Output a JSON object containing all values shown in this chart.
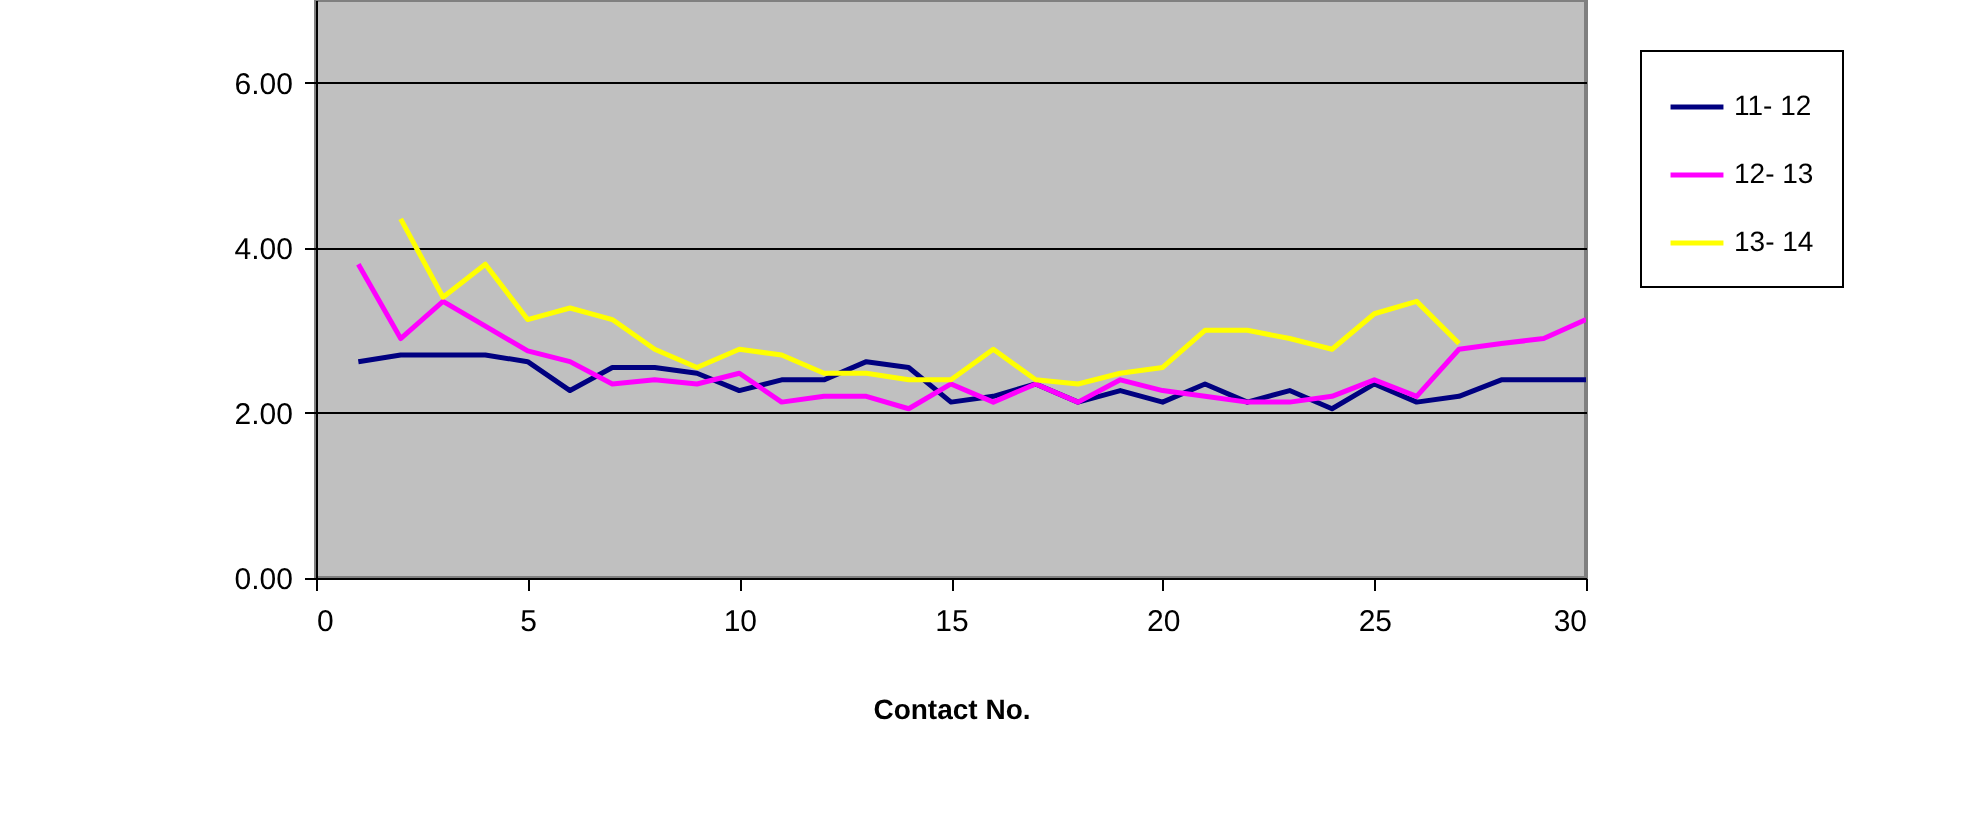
{
  "chart_data": {
    "type": "line",
    "xlabel": "Contact No.",
    "x": [
      1,
      2,
      3,
      4,
      5,
      6,
      7,
      8,
      9,
      10,
      11,
      12,
      13,
      14,
      15,
      16,
      17,
      18,
      19,
      20,
      21,
      22,
      23,
      24,
      25,
      26,
      27,
      28,
      29,
      30
    ],
    "series": [
      {
        "name": "11- 12",
        "color": "#000080",
        "values": [
          2.62,
          2.7,
          2.7,
          2.7,
          2.62,
          2.27,
          2.55,
          2.55,
          2.48,
          2.27,
          2.4,
          2.4,
          2.62,
          2.55,
          2.13,
          2.2,
          2.35,
          2.13,
          2.27,
          2.13,
          2.35,
          2.13,
          2.27,
          2.05,
          2.35,
          2.13,
          2.2,
          2.4,
          2.4,
          2.4
        ]
      },
      {
        "name": "12- 13",
        "color": "#ff00ff",
        "values": [
          3.8,
          2.9,
          3.35,
          3.05,
          2.75,
          2.62,
          2.35,
          2.4,
          2.35,
          2.48,
          2.13,
          2.2,
          2.2,
          2.05,
          2.35,
          2.13,
          2.35,
          2.13,
          2.4,
          2.27,
          2.2,
          2.13,
          2.13,
          2.2,
          2.4,
          2.2,
          2.77,
          2.84,
          2.9,
          3.13
        ]
      },
      {
        "name": "13- 14",
        "color": "#ffff00",
        "values": [
          null,
          4.35,
          3.4,
          3.8,
          3.13,
          3.27,
          3.13,
          2.77,
          2.55,
          2.77,
          2.7,
          2.48,
          2.48,
          2.4,
          2.4,
          2.77,
          2.4,
          2.35,
          2.48,
          2.55,
          3.0,
          3.0,
          2.9,
          2.77,
          3.2,
          3.35,
          2.84,
          null,
          null,
          null
        ]
      }
    ],
    "xlim": [
      0,
      30
    ],
    "xticks": [
      0,
      5,
      10,
      15,
      20,
      25,
      30
    ],
    "ylim": [
      0,
      7
    ],
    "yticks": [
      {
        "value": 0,
        "label": "0.00"
      },
      {
        "value": 2,
        "label": "2.00"
      },
      {
        "value": 4,
        "label": "4.00"
      },
      {
        "value": 6,
        "label": "6.00"
      }
    ],
    "grid": "y",
    "legend": "top right",
    "marker": "none",
    "line_style": "solid"
  }
}
